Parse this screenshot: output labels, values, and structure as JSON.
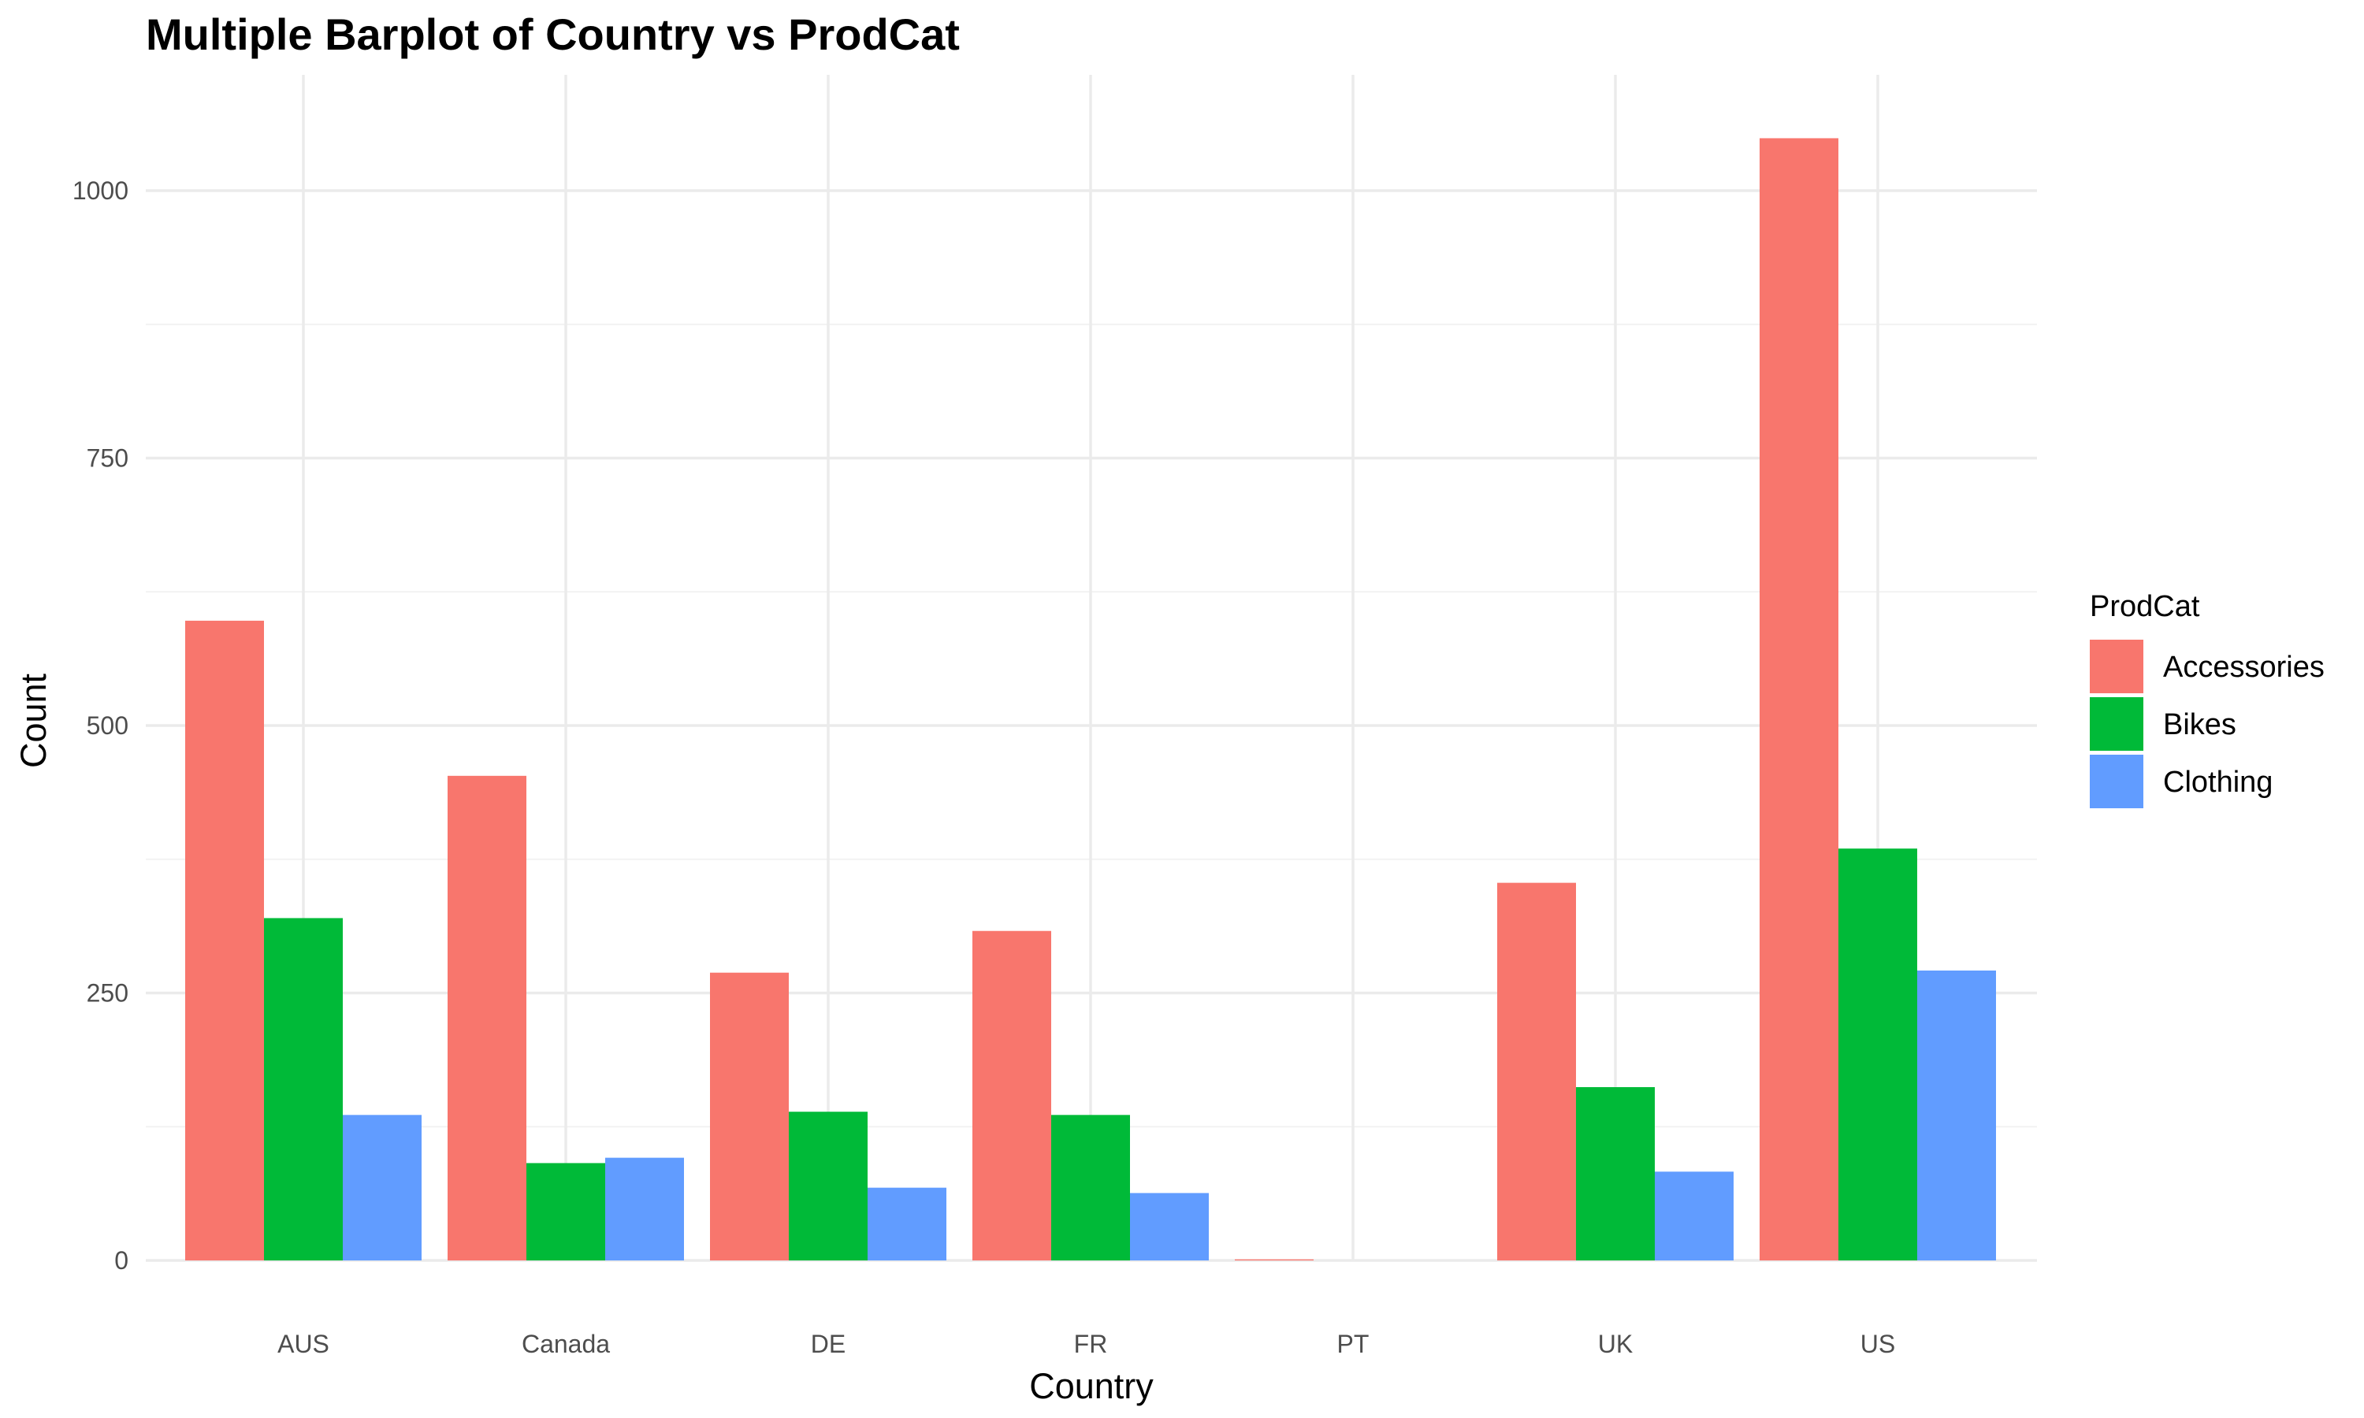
{
  "chart_data": {
    "type": "bar",
    "title": "Multiple Barplot of Country vs ProdCat",
    "xlabel": "Country",
    "ylabel": "Count",
    "categories": [
      "AUS",
      "Canada",
      "DE",
      "FR",
      "PT",
      "UK",
      "US"
    ],
    "series": [
      {
        "name": "Accessories",
        "color": "#F8766D",
        "values": [
          598,
          453,
          269,
          308,
          1,
          353,
          1049
        ]
      },
      {
        "name": "Bikes",
        "color": "#00BA38",
        "values": [
          320,
          91,
          139,
          136,
          0,
          162,
          385
        ]
      },
      {
        "name": "Clothing",
        "color": "#619CFF",
        "values": [
          136,
          96,
          68,
          63,
          0,
          83,
          271
        ]
      }
    ],
    "ylim": [
      0,
      1100
    ],
    "yticks": [
      0,
      250,
      500,
      750,
      1000
    ],
    "legend": {
      "title": "ProdCat",
      "position": "right"
    },
    "grid": true
  }
}
